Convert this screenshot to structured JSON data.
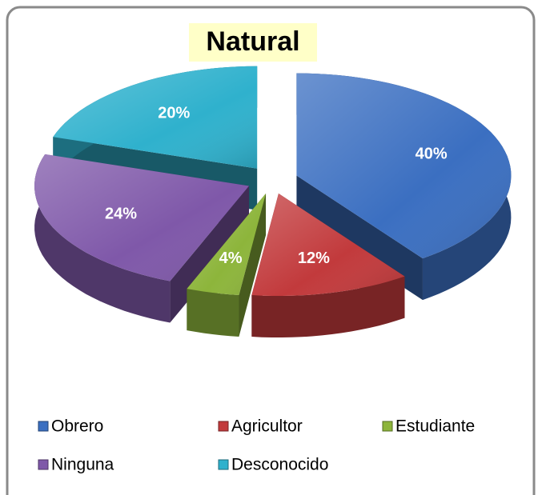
{
  "chart_data": {
    "type": "pie3d",
    "title": "Natural",
    "categories": [
      "Obrero",
      "Agricultor",
      "Estudiante",
      "Ninguna",
      "Desconocido"
    ],
    "values": [
      40,
      12,
      4,
      24,
      20
    ],
    "value_labels": [
      "40%",
      "12%",
      "4%",
      "24%",
      "20%"
    ],
    "colors": [
      "#3b6fc1",
      "#c23a3c",
      "#8db53b",
      "#7f58a9",
      "#2fb1cd"
    ],
    "legend": "bottom"
  }
}
